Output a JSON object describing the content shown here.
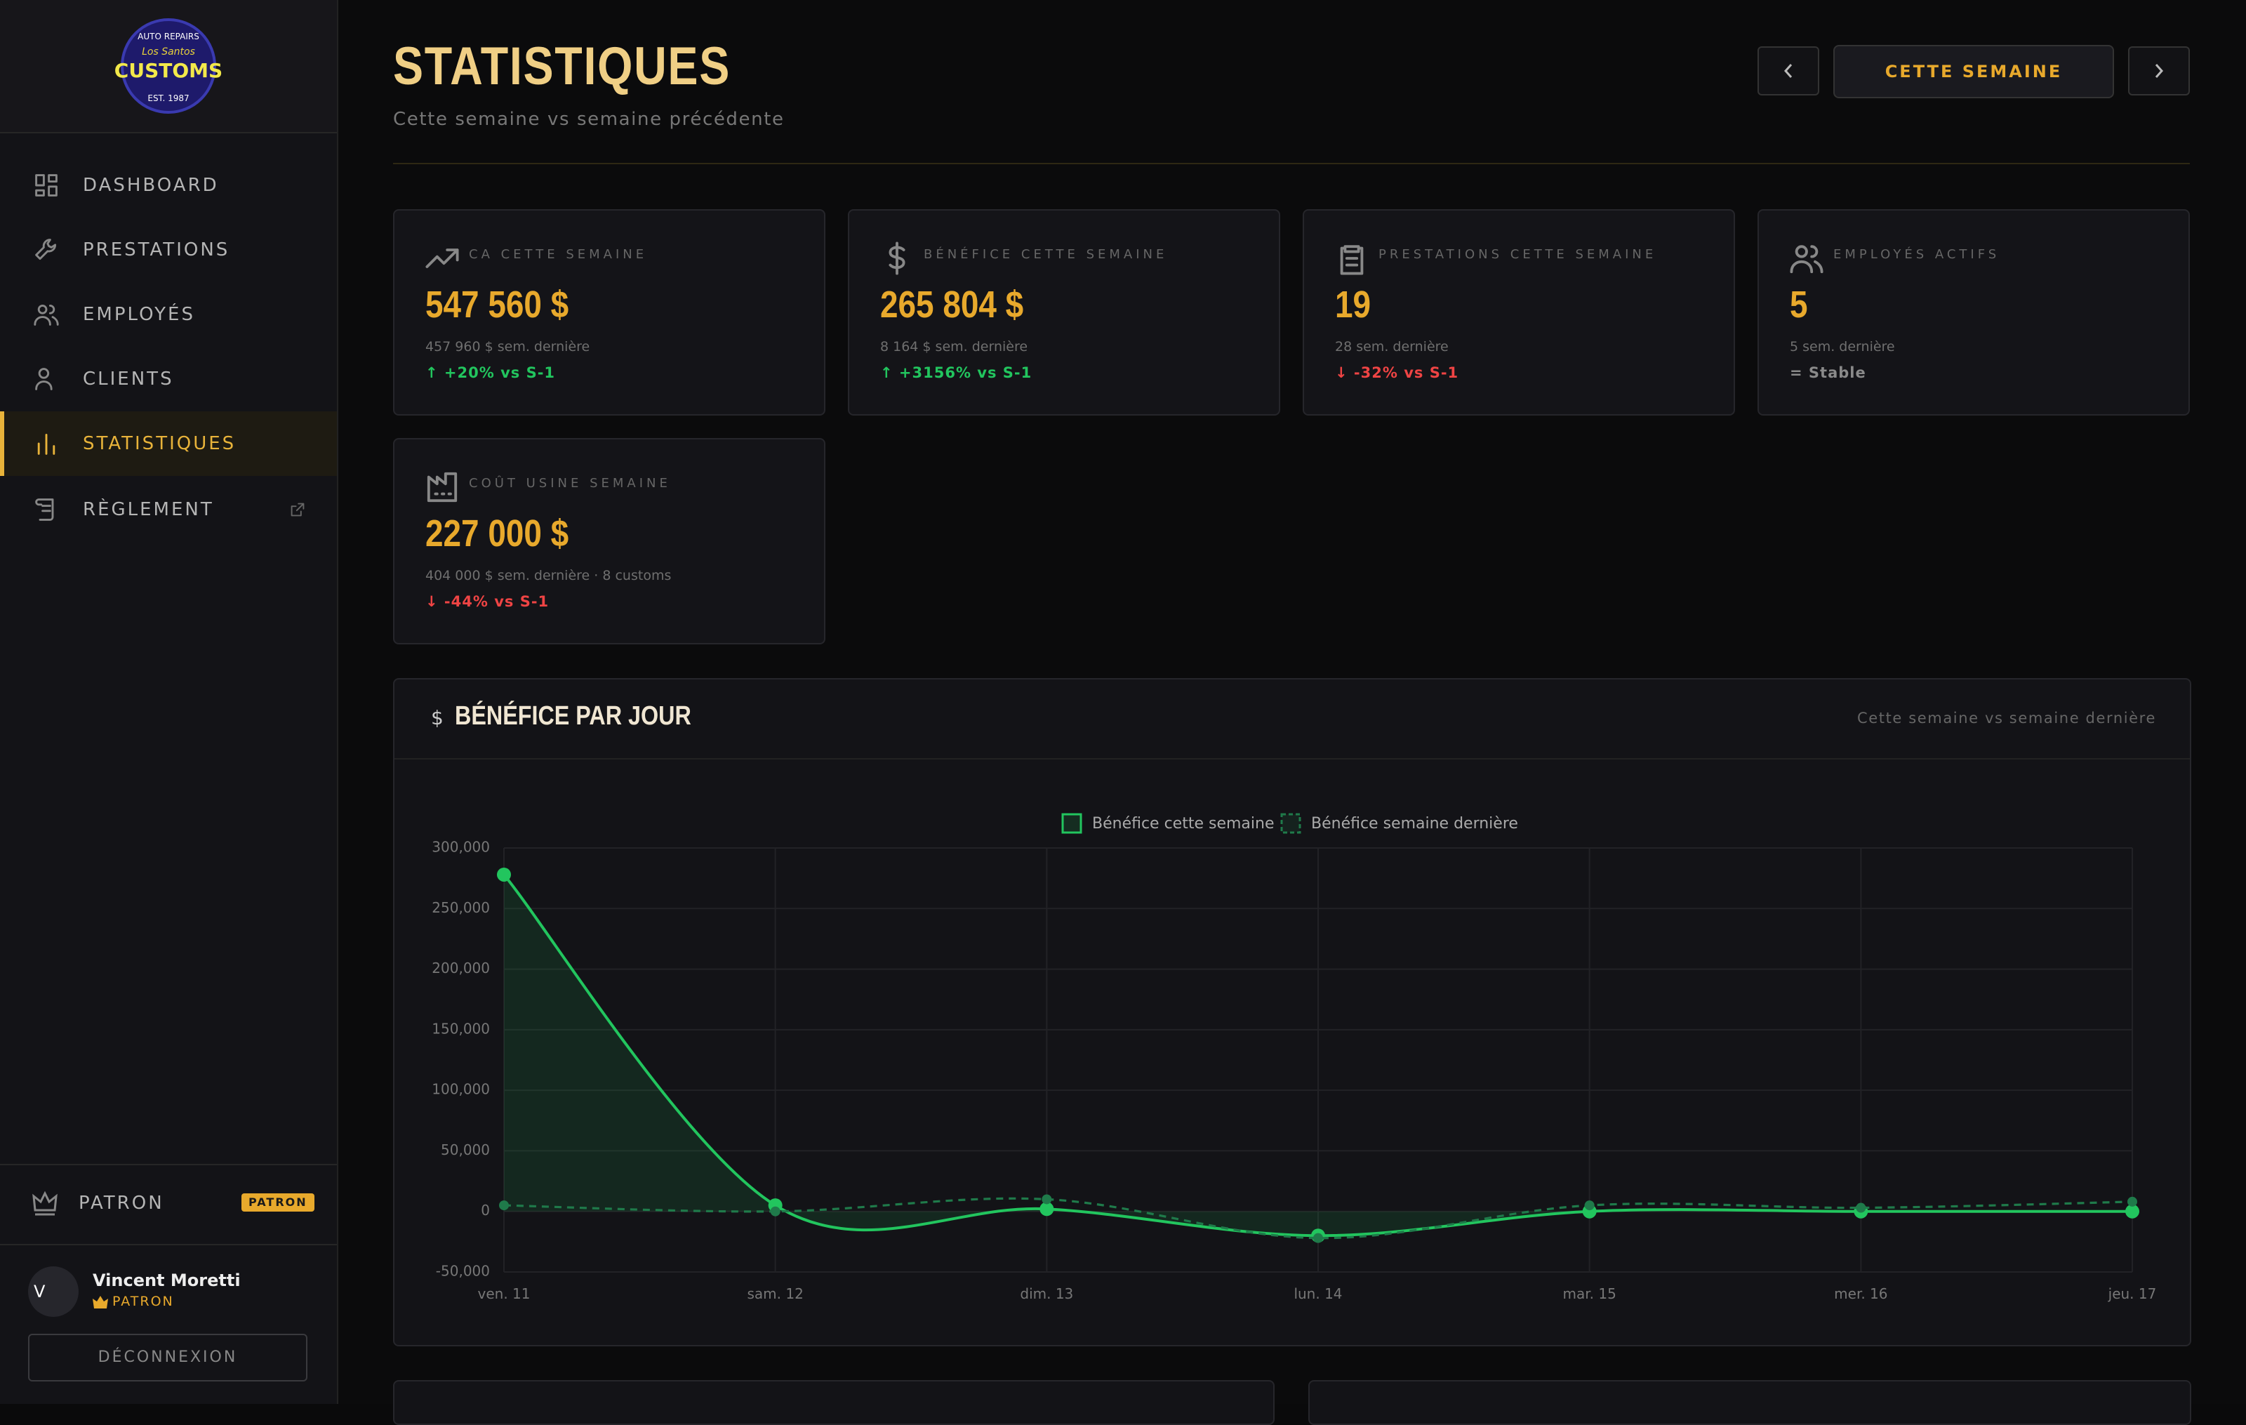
{
  "sidebar": {
    "logo": {
      "top": "AUTO REPAIRS",
      "script": "Los Santos",
      "main": "CUSTOMS",
      "bottom": "EST. 1987"
    },
    "nav": [
      {
        "label": "DASHBOARD"
      },
      {
        "label": "PRESTATIONS"
      },
      {
        "label": "EMPLOYÉS"
      },
      {
        "label": "CLIENTS"
      },
      {
        "label": "STATISTIQUES"
      },
      {
        "label": "RÈGLEMENT"
      }
    ],
    "role": "PATRON",
    "badge": "PATRON",
    "user": {
      "initial": "V",
      "name": "Vincent Moretti",
      "role": "PATRON"
    },
    "logout": "DÉCONNEXION"
  },
  "header": {
    "title": "STATISTIQUES",
    "subtitle": "Cette semaine vs semaine précédente",
    "period": "CETTE SEMAINE"
  },
  "cards": [
    {
      "label": "CA CETTE SEMAINE",
      "value": "547 560 $",
      "previous": "457 960 $ sem. dernière",
      "change": "↑ +20% vs S-1",
      "change_color": "#22c55e"
    },
    {
      "label": "BÉNÉFICE CETTE SEMAINE",
      "value": "265 804 $",
      "previous": "8 164 $ sem. dernière",
      "change": "↑ +3156% vs S-1",
      "change_color": "#22c55e"
    },
    {
      "label": "PRESTATIONS CETTE SEMAINE",
      "value": "19",
      "previous": "28 sem. dernière",
      "change": "↓ -32% vs S-1",
      "change_color": "#ef4444"
    },
    {
      "label": "EMPLOYÉS ACTIFS",
      "value": "5",
      "previous": "5 sem. dernière",
      "change": "= Stable",
      "change_color": "#8a8a8a"
    },
    {
      "label": "COÛT USINE SEMAINE",
      "value": "227 000 $",
      "previous": "404 000 $ sem. dernière · 8 customs",
      "change": "↓ -44% vs S-1",
      "change_color": "#ef4444"
    }
  ],
  "panel": {
    "icon": "$",
    "title": "BÉNÉFICE PAR JOUR",
    "note": "Cette semaine vs semaine dernière"
  },
  "chart_data": {
    "type": "line",
    "categories": [
      "ven. 11",
      "sam. 12",
      "dim. 13",
      "lun. 14",
      "mar. 15",
      "mer. 16",
      "jeu. 17"
    ],
    "series": [
      {
        "name": "Bénéfice cette semaine",
        "color": "#22c55e",
        "values": [
          278000,
          5000,
          2000,
          -20000,
          0,
          0,
          0
        ]
      },
      {
        "name": "Bénéfice semaine dernière",
        "color": "#1f7a4a",
        "values": [
          5000,
          0,
          10000,
          -22000,
          5000,
          3000,
          8000
        ]
      }
    ],
    "ylim": [
      -50000,
      300000
    ],
    "yticks": [
      {
        "value": -50000,
        "label": "-50,000"
      },
      0,
      {
        "value": 50000,
        "label": "50,000"
      },
      {
        "value": 100000,
        "label": "100,000"
      },
      {
        "value": 150000,
        "label": "150,000"
      },
      {
        "value": 200000,
        "label": "200,000"
      },
      {
        "value": 250000,
        "label": "250,000"
      },
      {
        "value": 300000,
        "label": "300,000"
      }
    ],
    "grid": true
  }
}
